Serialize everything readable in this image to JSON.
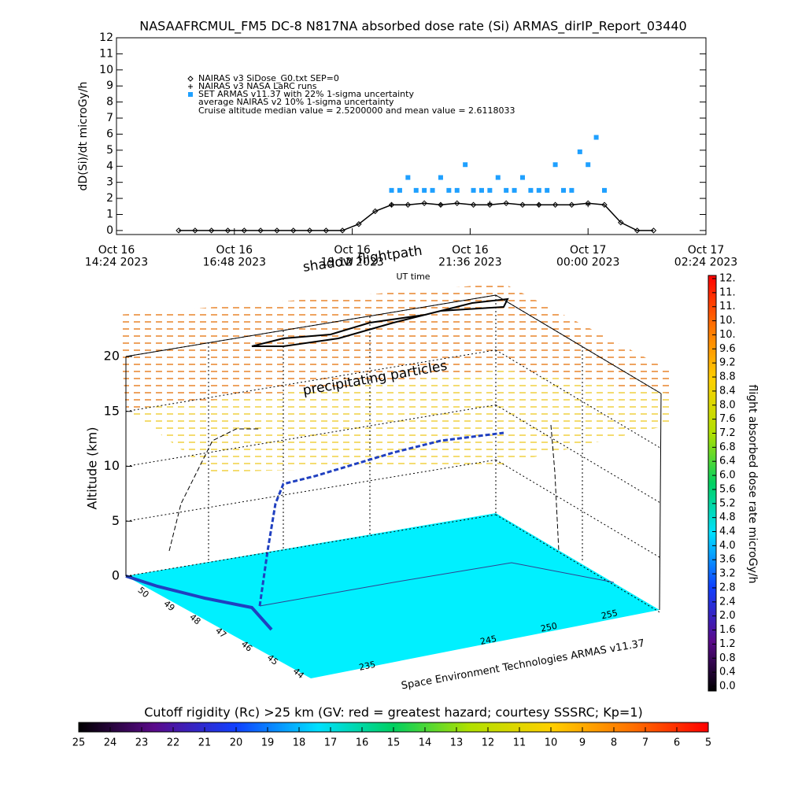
{
  "title": "NASAAFRCMUL_FM5 DC-8   N817NA absorbed dose rate (Si) ARMAS_dirIP_Report_03440",
  "chart_data": [
    {
      "type": "line",
      "ylabel": "dD(Si)/dt microGy/h",
      "xlabel": "UT time",
      "annotations": [
        "average NAIRAS v2 10% 1-sigma uncertainty",
        "Cruise altitude median value = 2.5200000 and mean value = 2.6118033"
      ],
      "xlim": [
        "2023-10-16T14:24",
        "2023-10-17T02:24"
      ],
      "xticks": [
        {
          "value": "2023-10-16T14:24",
          "label": "Oct 16\n14:24 2023"
        },
        {
          "value": "2023-10-16T16:48",
          "label": "Oct 16\n16:48 2023"
        },
        {
          "value": "2023-10-16T19:12",
          "label": "Oct 16\n19:12 2023"
        },
        {
          "value": "2023-10-16T21:36",
          "label": "Oct 16\n21:36 2023"
        },
        {
          "value": "2023-10-17T00:00",
          "label": "Oct 17\n00:00 2023"
        },
        {
          "value": "2023-10-17T02:24",
          "label": "Oct 17\n02:24 2023"
        }
      ],
      "ylim": [
        -0.25,
        12
      ],
      "yticks": [
        0,
        1,
        2,
        3,
        4,
        5,
        6,
        7,
        8,
        9,
        10,
        11,
        12
      ],
      "series": [
        {
          "name": "NAIRAS v3 SiDose_G0.txt SEP=0",
          "color": "#000000",
          "marker": "diamond",
          "x": [
            "2023-10-16T15:40",
            "2023-10-16T16:00",
            "2023-10-16T16:20",
            "2023-10-16T16:40",
            "2023-10-16T17:00",
            "2023-10-16T17:20",
            "2023-10-16T17:40",
            "2023-10-16T18:00",
            "2023-10-16T18:20",
            "2023-10-16T18:40",
            "2023-10-16T19:00",
            "2023-10-16T19:20",
            "2023-10-16T19:40",
            "2023-10-16T20:00",
            "2023-10-16T20:20",
            "2023-10-16T20:40",
            "2023-10-16T21:00",
            "2023-10-16T21:20",
            "2023-10-16T21:40",
            "2023-10-16T22:00",
            "2023-10-16T22:20",
            "2023-10-16T22:40",
            "2023-10-16T23:00",
            "2023-10-16T23:20",
            "2023-10-16T23:40",
            "2023-10-17T00:00",
            "2023-10-17T00:20",
            "2023-10-17T00:40",
            "2023-10-17T01:00",
            "2023-10-17T01:20"
          ],
          "values": [
            0,
            0,
            0,
            0,
            0,
            0,
            0,
            0,
            0,
            0,
            0,
            0.4,
            1.2,
            1.6,
            1.6,
            1.7,
            1.6,
            1.7,
            1.6,
            1.6,
            1.7,
            1.6,
            1.6,
            1.6,
            1.6,
            1.7,
            1.6,
            0.5,
            0,
            0
          ]
        },
        {
          "name": "NAIRAS v3 NASA LaRC runs",
          "color": "#000000",
          "marker": "plus",
          "x": [
            "2023-10-16T20:00",
            "2023-10-16T21:00",
            "2023-10-16T22:00",
            "2023-10-16T23:00",
            "2023-10-17T00:00"
          ],
          "values": [
            1.6,
            1.6,
            1.7,
            1.6,
            1.6
          ]
        },
        {
          "name": "SET ARMAS v11.37 with 22% 1-sigma uncertainty",
          "color": "#1fa0ff",
          "marker": "square",
          "x": [
            "2023-10-16T20:00",
            "2023-10-16T20:10",
            "2023-10-16T20:20",
            "2023-10-16T20:30",
            "2023-10-16T20:40",
            "2023-10-16T20:50",
            "2023-10-16T21:00",
            "2023-10-16T21:10",
            "2023-10-16T21:20",
            "2023-10-16T21:30",
            "2023-10-16T21:40",
            "2023-10-16T21:50",
            "2023-10-16T22:00",
            "2023-10-16T22:10",
            "2023-10-16T22:20",
            "2023-10-16T22:30",
            "2023-10-16T22:40",
            "2023-10-16T22:50",
            "2023-10-16T23:00",
            "2023-10-16T23:10",
            "2023-10-16T23:20",
            "2023-10-16T23:30",
            "2023-10-16T23:40",
            "2023-10-16T23:50",
            "2023-10-17T00:00",
            "2023-10-17T00:10",
            "2023-10-17T00:20"
          ],
          "values": [
            2.5,
            2.5,
            3.3,
            2.5,
            2.5,
            2.5,
            3.3,
            2.5,
            2.5,
            4.1,
            2.5,
            2.5,
            2.5,
            3.3,
            2.5,
            2.5,
            3.3,
            2.5,
            2.5,
            2.5,
            4.1,
            2.5,
            2.5,
            4.9,
            4.1,
            5.8,
            2.5
          ]
        }
      ]
    },
    {
      "type": "3d",
      "annotations": [
        "shadow flightpath",
        "precipitating particles"
      ],
      "zlabel": "Altitude (km)",
      "zlim": [
        0,
        20
      ],
      "zticks": [
        0,
        5,
        10,
        15,
        20
      ],
      "latlim": [
        50.5,
        43.5
      ],
      "latticks": [
        50,
        49,
        48,
        47,
        46,
        45,
        44
      ],
      "lonlim": [
        231,
        257
      ],
      "lonticks": [
        235,
        245,
        250,
        255
      ],
      "footer": "Space Environment Technologies ARMAS v11.37"
    },
    {
      "type": "colorbar",
      "orientation": "vertical",
      "label": "flight absorbed dose rate microGy/h",
      "clim": [
        0,
        11.6
      ],
      "ticks": [
        {
          "value": 0,
          "label": "0.0"
        },
        {
          "value": 0.4,
          "label": "0.4"
        },
        {
          "value": 0.8,
          "label": "0.8"
        },
        {
          "value": 1.2,
          "label": "1.2"
        },
        {
          "value": 1.6,
          "label": "1.6"
        },
        {
          "value": 2.0,
          "label": "2.0"
        },
        {
          "value": 2.4,
          "label": "2.4"
        },
        {
          "value": 2.8,
          "label": "2.8"
        },
        {
          "value": 3.2,
          "label": "3.2"
        },
        {
          "value": 3.6,
          "label": "3.6"
        },
        {
          "value": 4.0,
          "label": "4.0"
        },
        {
          "value": 4.4,
          "label": "4.4"
        },
        {
          "value": 4.8,
          "label": "4.8"
        },
        {
          "value": 5.2,
          "label": "5.2"
        },
        {
          "value": 5.6,
          "label": "5.6"
        },
        {
          "value": 6.0,
          "label": "6.0"
        },
        {
          "value": 6.4,
          "label": "6.4"
        },
        {
          "value": 6.8,
          "label": "6.8"
        },
        {
          "value": 7.2,
          "label": "7.2"
        },
        {
          "value": 7.6,
          "label": "7.6"
        },
        {
          "value": 8.0,
          "label": "8.0"
        },
        {
          "value": 8.4,
          "label": "8.4"
        },
        {
          "value": 8.8,
          "label": "8.8"
        },
        {
          "value": 9.2,
          "label": "9.2"
        },
        {
          "value": 9.6,
          "label": "9.6"
        },
        {
          "value": 10.0,
          "label": "10."
        },
        {
          "value": 10.4,
          "label": "10."
        },
        {
          "value": 10.8,
          "label": "11."
        },
        {
          "value": 11.2,
          "label": "11."
        },
        {
          "value": 11.6,
          "label": "12."
        }
      ]
    },
    {
      "type": "colorbar",
      "orientation": "horizontal",
      "label": "Cutoff rigidity (Rc) >25 km (GV: red = greatest hazard; courtesy SSSRC; Kp=1)",
      "clim": [
        25,
        5
      ],
      "ticks": [
        25,
        24,
        23,
        22,
        21,
        20,
        19,
        18,
        17,
        16,
        15,
        14,
        13,
        12,
        11,
        10,
        9,
        8,
        7,
        6,
        5
      ]
    }
  ]
}
